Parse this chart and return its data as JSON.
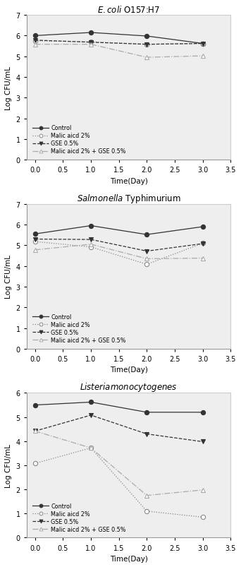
{
  "ecoli": {
    "title_latex": "$\\it{E. coli}$ O157:H7",
    "x": [
      0,
      1,
      2,
      3
    ],
    "control": [
      6.0,
      6.15,
      5.98,
      5.62
    ],
    "malic": [
      5.75,
      5.7,
      5.58,
      5.62
    ],
    "gse": [
      5.78,
      5.68,
      5.58,
      5.62
    ],
    "malic_gse": [
      5.58,
      5.58,
      4.95,
      5.02
    ],
    "ylim": [
      0,
      7
    ],
    "yticks": [
      0,
      1,
      2,
      3,
      4,
      5,
      6,
      7
    ]
  },
  "salmonella": {
    "title_latex": "$\\it{Salmonella}$ Typhimurium",
    "x": [
      0,
      1,
      2,
      3
    ],
    "control": [
      5.55,
      5.95,
      5.52,
      5.9
    ],
    "malic": [
      5.18,
      4.92,
      4.08,
      5.1
    ],
    "gse": [
      5.3,
      5.28,
      4.72,
      5.08
    ],
    "malic_gse": [
      4.78,
      5.05,
      4.35,
      4.38
    ],
    "ylim": [
      0,
      7
    ],
    "yticks": [
      0,
      1,
      2,
      3,
      4,
      5,
      6,
      7
    ]
  },
  "listeria": {
    "title_latex": "$\\it{Listeria monocytogenes}$",
    "x": [
      0,
      1,
      2,
      3
    ],
    "control": [
      5.5,
      5.62,
      5.2,
      5.2
    ],
    "malic": [
      3.08,
      3.72,
      1.1,
      0.85
    ],
    "gse": [
      4.42,
      5.08,
      4.3,
      3.98
    ],
    "malic_gse": [
      4.42,
      3.72,
      1.75,
      1.98
    ],
    "ylim": [
      0,
      6
    ],
    "yticks": [
      0,
      1,
      2,
      3,
      4,
      5,
      6
    ]
  },
  "legend_labels": [
    "Control",
    "Malic aicd 2%",
    "GSE 0.5%",
    "Malic aicd 2% + GSE 0.5%"
  ],
  "xlabel": "Time(Day)",
  "ylabel": "Log CFU/mL",
  "xlim": [
    -0.15,
    3.4
  ],
  "xticks": [
    0.0,
    0.5,
    1.0,
    1.5,
    2.0,
    2.5,
    3.0,
    3.5
  ],
  "axes_facecolor": "#eeeeee",
  "fig_facecolor": "#ffffff"
}
